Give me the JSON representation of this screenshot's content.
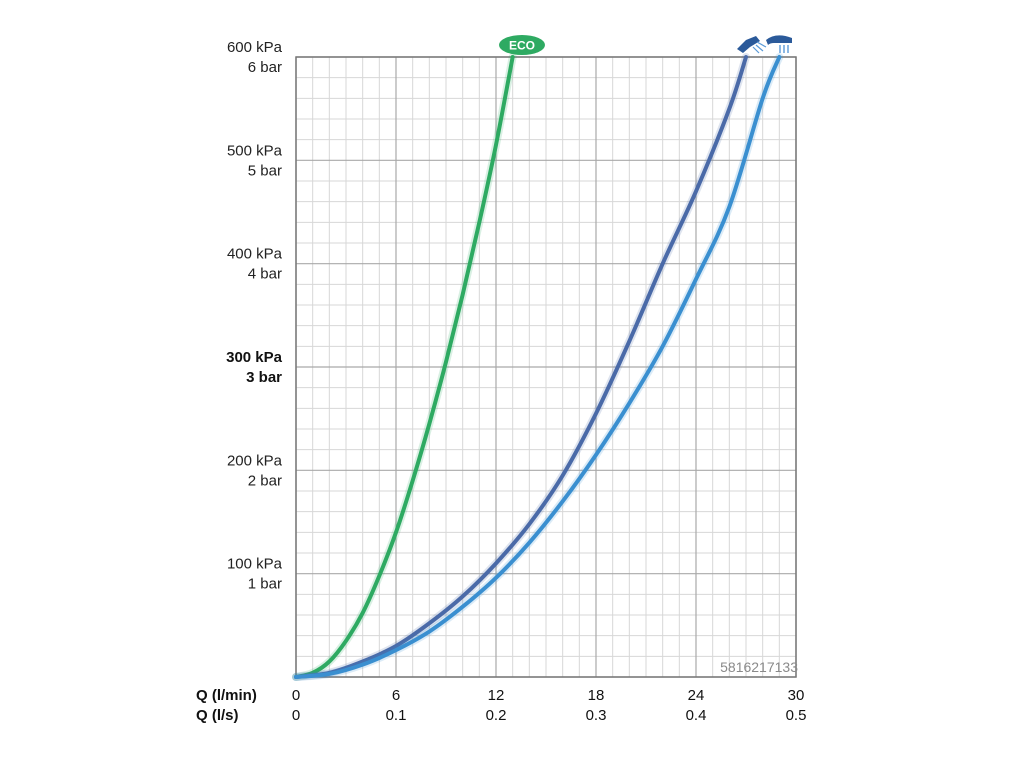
{
  "chart_data": {
    "type": "line",
    "x_units": [
      {
        "label": "Q (l/min)",
        "ticks": [
          "0",
          "6",
          "12",
          "18",
          "24",
          "30"
        ]
      },
      {
        "label": "Q (l/s)",
        "ticks": [
          "0",
          "0.1",
          "0.2",
          "0.3",
          "0.4",
          "0.5"
        ]
      }
    ],
    "xlim": [
      0,
      30
    ],
    "ylim": [
      0,
      600
    ],
    "y_ticks": [
      {
        "value": 600,
        "kpa": "600 kPa",
        "bar": "6 bar",
        "bold": false
      },
      {
        "value": 500,
        "kpa": "500 kPa",
        "bar": "5 bar",
        "bold": false
      },
      {
        "value": 400,
        "kpa": "400 kPa",
        "bar": "4 bar",
        "bold": false
      },
      {
        "value": 300,
        "kpa": "300 kPa",
        "bar": "3 bar",
        "bold": true
      },
      {
        "value": 200,
        "kpa": "200 kPa",
        "bar": "2 bar",
        "bold": false
      },
      {
        "value": 100,
        "kpa": "100 kPa",
        "bar": "1 bar",
        "bold": false
      }
    ],
    "grid": true,
    "series": [
      {
        "name": "ECO",
        "color": "#2eaa62",
        "points": [
          [
            0,
            0
          ],
          [
            1,
            4
          ],
          [
            2,
            15
          ],
          [
            3,
            35
          ],
          [
            4,
            62
          ],
          [
            5,
            98
          ],
          [
            6,
            140
          ],
          [
            7,
            190
          ],
          [
            8,
            245
          ],
          [
            9,
            305
          ],
          [
            10,
            370
          ],
          [
            11,
            440
          ],
          [
            12,
            515
          ],
          [
            13,
            600
          ]
        ]
      },
      {
        "color": "#4a6aa8",
        "icon": "shower-head-spray-icon",
        "points": [
          [
            0,
            0
          ],
          [
            2,
            4
          ],
          [
            4,
            15
          ],
          [
            6,
            30
          ],
          [
            8,
            52
          ],
          [
            10,
            78
          ],
          [
            12,
            110
          ],
          [
            14,
            148
          ],
          [
            16,
            195
          ],
          [
            18,
            255
          ],
          [
            20,
            325
          ],
          [
            22,
            400
          ],
          [
            24,
            470
          ],
          [
            26,
            550
          ],
          [
            27,
            600
          ]
        ]
      },
      {
        "color": "#3a8fd0",
        "icon": "shower-head-rain-icon",
        "points": [
          [
            0,
            0
          ],
          [
            2,
            3
          ],
          [
            4,
            12
          ],
          [
            6,
            26
          ],
          [
            8,
            44
          ],
          [
            10,
            68
          ],
          [
            12,
            96
          ],
          [
            14,
            130
          ],
          [
            16,
            170
          ],
          [
            18,
            215
          ],
          [
            20,
            265
          ],
          [
            22,
            320
          ],
          [
            24,
            385
          ],
          [
            26,
            455
          ],
          [
            28,
            560
          ],
          [
            29,
            600
          ]
        ]
      }
    ],
    "eco_badge": "ECO",
    "code": "5816217133"
  },
  "colors": {
    "grid_major": "#a9a9a9",
    "grid_minor": "#d7d7d7",
    "frame": "#777777",
    "eco_badge_bg": "#2eaa62",
    "icon_dark_blue": "#2b5a9a",
    "icon_light_blue": "#5a9ad8"
  }
}
